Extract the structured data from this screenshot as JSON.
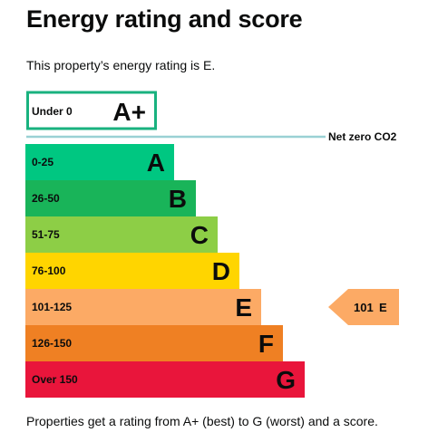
{
  "heading": "Energy rating and score",
  "intro": "This property’s energy rating is E.",
  "footer": "Properties get a rating from A+ (best) to G (worst) and a score.",
  "aplus": {
    "range": "Under 0",
    "letter": "A+",
    "border_color": "#19b27f"
  },
  "net_zero": {
    "label": "Net zero CO2",
    "line_color": "#9ad1d4"
  },
  "bands": [
    {
      "range": "0-25",
      "letter": "A",
      "color": "#00c781"
    },
    {
      "range": "26-50",
      "letter": "B",
      "color": "#19b459"
    },
    {
      "range": "51-75",
      "letter": "C",
      "color": "#8dce46"
    },
    {
      "range": "76-100",
      "letter": "D",
      "color": "#ffd500"
    },
    {
      "range": "101-125",
      "letter": "E",
      "color": "#fcaa65"
    },
    {
      "range": "126-150",
      "letter": "F",
      "color": "#ef8023"
    },
    {
      "range": "Over 150",
      "letter": "G",
      "color": "#e9153b"
    }
  ],
  "current": {
    "score": "101",
    "letter": "E",
    "band_index": 4,
    "color": "#fcaa65"
  }
}
